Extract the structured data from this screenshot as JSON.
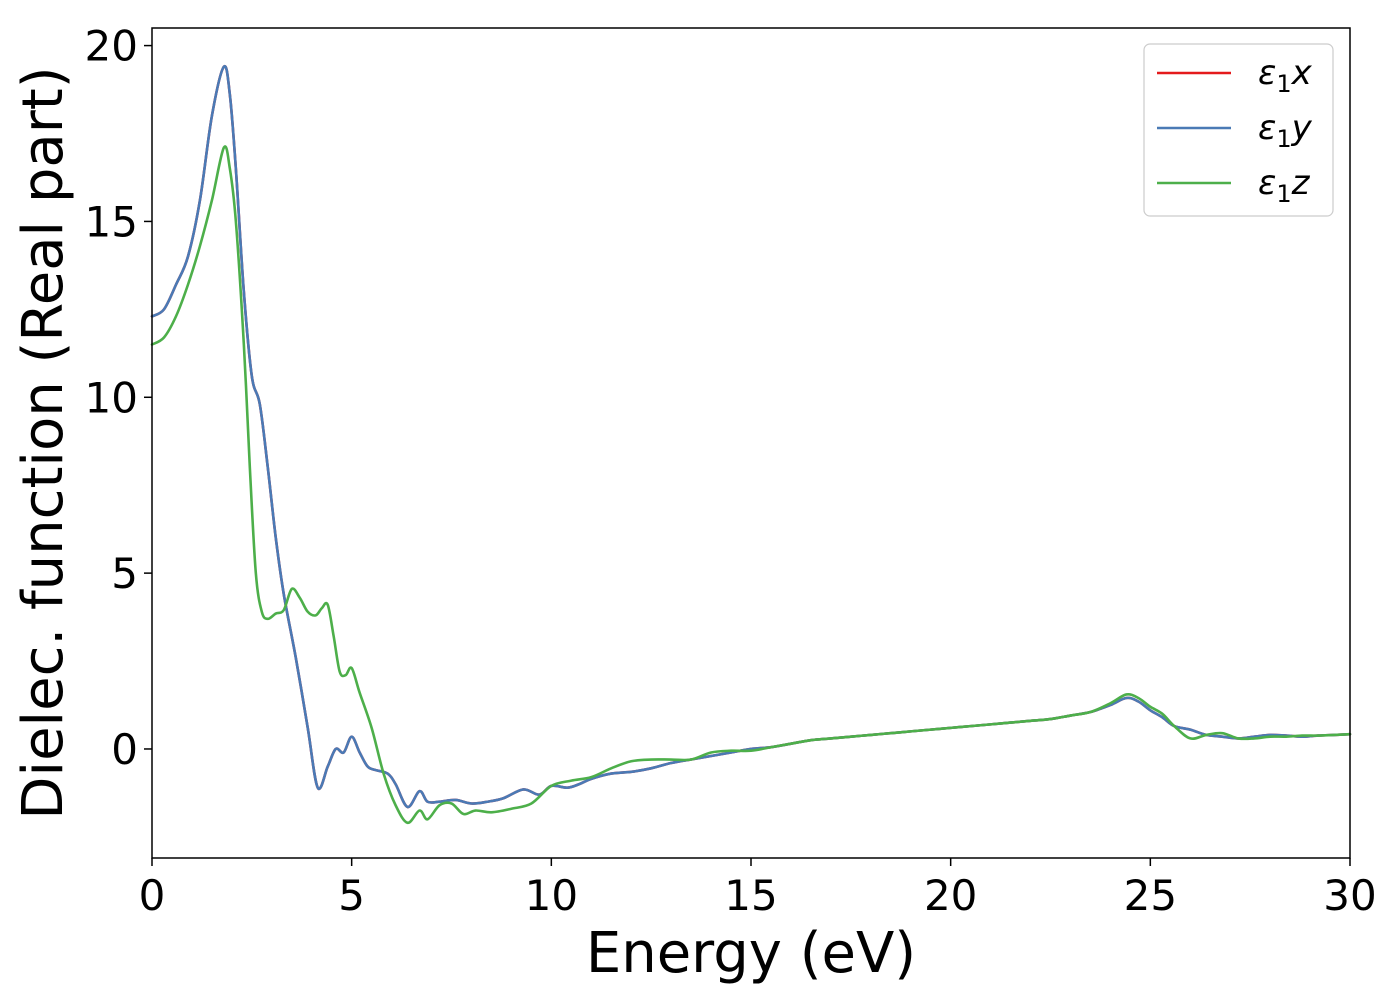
{
  "chart_data": {
    "type": "line",
    "xlabel": "Energy (eV)",
    "ylabel": "Dielec. function (Real part)",
    "xlim": [
      0,
      30
    ],
    "ylim": [
      -3.1,
      20.5
    ],
    "xticks": [
      0,
      5,
      10,
      15,
      20,
      25,
      30
    ],
    "yticks": [
      0,
      5,
      10,
      15,
      20
    ],
    "grid": false,
    "legend_position": "top-right",
    "series": [
      {
        "name": "ε1x",
        "legend_base": "ε",
        "legend_sub": "1",
        "legend_suffix": "x",
        "color": "#e41a1c",
        "x": [
          0,
          0.3,
          0.6,
          0.9,
          1.2,
          1.5,
          1.8,
          1.95,
          2.1,
          2.3,
          2.5,
          2.7,
          2.9,
          3.1,
          3.3,
          3.6,
          3.9,
          4.15,
          4.4,
          4.6,
          4.8,
          5.0,
          5.2,
          5.4,
          5.6,
          5.9,
          6.1,
          6.4,
          6.7,
          6.9,
          7.2,
          7.6,
          8.0,
          8.4,
          8.8,
          9.3,
          9.7,
          10.0,
          10.4,
          10.7,
          11.0,
          11.5,
          12.0,
          12.5,
          13.0,
          13.5,
          14.0,
          14.5,
          15.0,
          15.5,
          16.0,
          16.5,
          17.0,
          17.5,
          18.0,
          18.5,
          19.0,
          19.5,
          20.0,
          20.5,
          21.0,
          21.5,
          22.0,
          22.5,
          23.0,
          23.5,
          24.0,
          24.4,
          24.7,
          25.0,
          25.3,
          25.6,
          26.0,
          26.4,
          26.8,
          27.2,
          27.6,
          28.0,
          28.4,
          28.8,
          29.2,
          29.6,
          30.0
        ],
        "y": [
          12.3,
          12.5,
          13.2,
          14.0,
          15.6,
          18.0,
          19.4,
          18.6,
          16.5,
          13.0,
          10.6,
          9.8,
          8.0,
          6.0,
          4.4,
          2.6,
          0.6,
          -1.1,
          -0.5,
          0.0,
          -0.1,
          0.35,
          -0.1,
          -0.5,
          -0.6,
          -0.7,
          -1.0,
          -1.65,
          -1.2,
          -1.5,
          -1.5,
          -1.45,
          -1.55,
          -1.5,
          -1.4,
          -1.15,
          -1.3,
          -1.05,
          -1.1,
          -1.0,
          -0.85,
          -0.7,
          -0.65,
          -0.55,
          -0.4,
          -0.3,
          -0.2,
          -0.1,
          0.0,
          0.05,
          0.15,
          0.25,
          0.3,
          0.35,
          0.4,
          0.45,
          0.5,
          0.55,
          0.6,
          0.65,
          0.7,
          0.75,
          0.8,
          0.85,
          0.95,
          1.05,
          1.25,
          1.45,
          1.35,
          1.1,
          0.9,
          0.65,
          0.55,
          0.4,
          0.35,
          0.3,
          0.35,
          0.4,
          0.38,
          0.35,
          0.38,
          0.4,
          0.42
        ]
      },
      {
        "name": "ε1y",
        "legend_base": "ε",
        "legend_sub": "1",
        "legend_suffix": "y",
        "color": "#4a7ab5",
        "x": [
          0,
          0.3,
          0.6,
          0.9,
          1.2,
          1.5,
          1.8,
          1.95,
          2.1,
          2.3,
          2.5,
          2.7,
          2.9,
          3.1,
          3.3,
          3.6,
          3.9,
          4.15,
          4.4,
          4.6,
          4.8,
          5.0,
          5.2,
          5.4,
          5.6,
          5.9,
          6.1,
          6.4,
          6.7,
          6.9,
          7.2,
          7.6,
          8.0,
          8.4,
          8.8,
          9.3,
          9.7,
          10.0,
          10.4,
          10.7,
          11.0,
          11.5,
          12.0,
          12.5,
          13.0,
          13.5,
          14.0,
          14.5,
          15.0,
          15.5,
          16.0,
          16.5,
          17.0,
          17.5,
          18.0,
          18.5,
          19.0,
          19.5,
          20.0,
          20.5,
          21.0,
          21.5,
          22.0,
          22.5,
          23.0,
          23.5,
          24.0,
          24.4,
          24.7,
          25.0,
          25.3,
          25.6,
          26.0,
          26.4,
          26.8,
          27.2,
          27.6,
          28.0,
          28.4,
          28.8,
          29.2,
          29.6,
          30.0
        ],
        "y": [
          12.3,
          12.5,
          13.2,
          14.0,
          15.6,
          18.0,
          19.4,
          18.6,
          16.5,
          13.0,
          10.6,
          9.8,
          8.0,
          6.0,
          4.4,
          2.6,
          0.6,
          -1.1,
          -0.5,
          0.0,
          -0.1,
          0.35,
          -0.1,
          -0.5,
          -0.6,
          -0.7,
          -1.0,
          -1.65,
          -1.2,
          -1.5,
          -1.5,
          -1.45,
          -1.55,
          -1.5,
          -1.4,
          -1.15,
          -1.3,
          -1.05,
          -1.1,
          -1.0,
          -0.85,
          -0.7,
          -0.65,
          -0.55,
          -0.4,
          -0.3,
          -0.2,
          -0.1,
          0.0,
          0.05,
          0.15,
          0.25,
          0.3,
          0.35,
          0.4,
          0.45,
          0.5,
          0.55,
          0.6,
          0.65,
          0.7,
          0.75,
          0.8,
          0.85,
          0.95,
          1.05,
          1.25,
          1.45,
          1.35,
          1.1,
          0.9,
          0.65,
          0.55,
          0.4,
          0.35,
          0.3,
          0.35,
          0.4,
          0.38,
          0.35,
          0.38,
          0.4,
          0.42
        ]
      },
      {
        "name": "ε1z",
        "legend_base": "ε",
        "legend_sub": "1",
        "legend_suffix": "z",
        "color": "#4daf4a",
        "x": [
          0,
          0.3,
          0.6,
          0.9,
          1.2,
          1.5,
          1.8,
          1.95,
          2.1,
          2.3,
          2.45,
          2.6,
          2.75,
          2.9,
          3.1,
          3.3,
          3.5,
          3.7,
          3.9,
          4.1,
          4.25,
          4.4,
          4.55,
          4.7,
          4.85,
          5.0,
          5.2,
          5.5,
          5.8,
          6.1,
          6.4,
          6.7,
          6.9,
          7.2,
          7.5,
          7.8,
          8.1,
          8.5,
          9.0,
          9.5,
          10.0,
          10.5,
          11.0,
          11.5,
          12.0,
          12.5,
          13.0,
          13.5,
          14.0,
          14.5,
          15.0,
          15.5,
          16.0,
          16.5,
          17.0,
          17.5,
          18.0,
          18.5,
          19.0,
          19.5,
          20.0,
          20.5,
          21.0,
          21.5,
          22.0,
          22.5,
          23.0,
          23.5,
          24.0,
          24.4,
          24.7,
          25.0,
          25.3,
          25.6,
          26.0,
          26.4,
          26.8,
          27.2,
          27.6,
          28.0,
          28.4,
          28.8,
          29.2,
          29.6,
          30.0
        ],
        "y": [
          11.5,
          11.7,
          12.3,
          13.2,
          14.3,
          15.6,
          17.1,
          16.5,
          15.0,
          11.5,
          8.0,
          5.0,
          3.9,
          3.7,
          3.85,
          3.95,
          4.55,
          4.3,
          3.9,
          3.8,
          4.0,
          4.1,
          3.2,
          2.2,
          2.1,
          2.3,
          1.6,
          0.6,
          -0.7,
          -1.6,
          -2.1,
          -1.75,
          -2.0,
          -1.6,
          -1.55,
          -1.85,
          -1.75,
          -1.8,
          -1.7,
          -1.55,
          -1.05,
          -0.9,
          -0.8,
          -0.55,
          -0.35,
          -0.3,
          -0.3,
          -0.3,
          -0.1,
          -0.05,
          -0.05,
          0.05,
          0.15,
          0.25,
          0.3,
          0.35,
          0.4,
          0.45,
          0.5,
          0.55,
          0.6,
          0.65,
          0.7,
          0.75,
          0.8,
          0.85,
          0.95,
          1.05,
          1.3,
          1.55,
          1.45,
          1.2,
          1.0,
          0.65,
          0.3,
          0.4,
          0.45,
          0.3,
          0.3,
          0.35,
          0.35,
          0.38,
          0.38,
          0.4,
          0.42
        ]
      }
    ]
  }
}
